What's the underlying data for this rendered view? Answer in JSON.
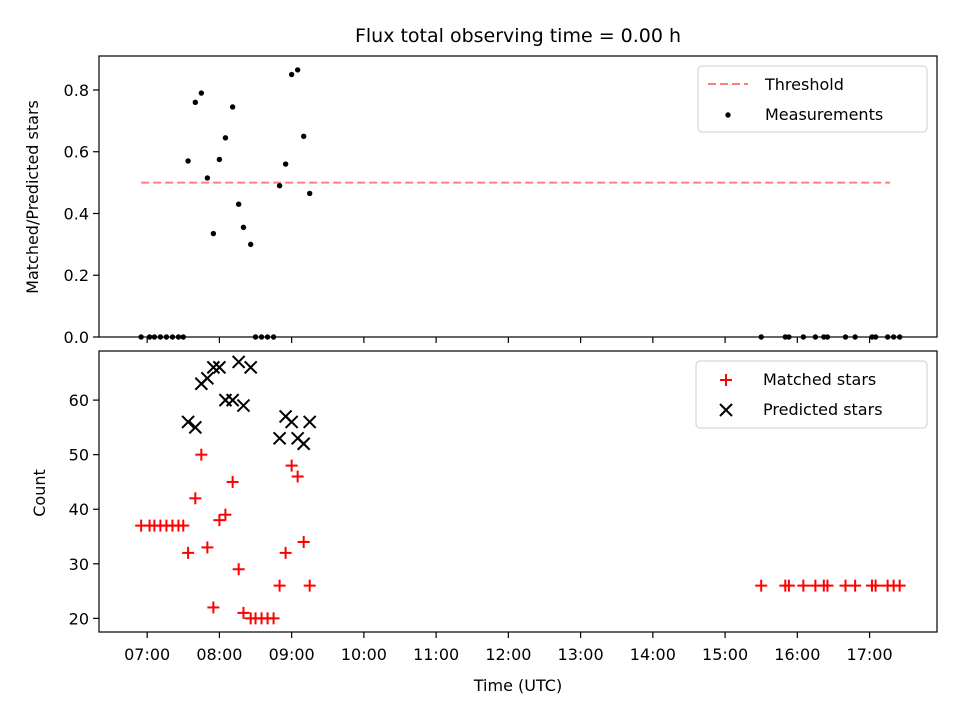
{
  "chart_data": [
    {
      "type": "scatter",
      "title": "Flux total observing time = 0.00 h",
      "xlabel": "",
      "ylabel": "Matched/Predicted stars",
      "ylim": [
        0,
        0.91
      ],
      "yticks": [
        "0.0",
        "0.2",
        "0.4",
        "0.6",
        "0.8"
      ],
      "legend_position": "top-right",
      "threshold": {
        "name": "Threshold",
        "value": 0.5,
        "x_start": "06:55",
        "x_end": "17:17",
        "color": "#ff7f7f"
      },
      "series": [
        {
          "name": "Measurements",
          "color": "#000000",
          "points": [
            [
              "06:55",
              0
            ],
            [
              "07:02",
              0
            ],
            [
              "07:06",
              0
            ],
            [
              "07:11",
              0
            ],
            [
              "07:16",
              0
            ],
            [
              "07:21",
              0
            ],
            [
              "07:26",
              0
            ],
            [
              "07:30",
              0
            ],
            [
              "07:34",
              0.57
            ],
            [
              "07:40",
              0.76
            ],
            [
              "07:45",
              0.79
            ],
            [
              "07:50",
              0.515
            ],
            [
              "07:55",
              0.335
            ],
            [
              "08:00",
              0.575
            ],
            [
              "08:05",
              0.645
            ],
            [
              "08:11",
              0.745
            ],
            [
              "08:16",
              0.43
            ],
            [
              "08:20",
              0.355
            ],
            [
              "08:26",
              0.3
            ],
            [
              "08:30",
              0
            ],
            [
              "08:35",
              0
            ],
            [
              "08:40",
              0
            ],
            [
              "08:45",
              0
            ],
            [
              "08:50",
              0.49
            ],
            [
              "08:55",
              0.56
            ],
            [
              "09:00",
              0.85
            ],
            [
              "09:05",
              0.865
            ],
            [
              "09:10",
              0.65
            ],
            [
              "09:15",
              0.465
            ],
            [
              "15:30",
              0
            ],
            [
              "15:50",
              0
            ],
            [
              "15:53",
              0
            ],
            [
              "16:05",
              0
            ],
            [
              "16:15",
              0
            ],
            [
              "16:22",
              0
            ],
            [
              "16:25",
              0
            ],
            [
              "16:40",
              0
            ],
            [
              "16:48",
              0
            ],
            [
              "17:02",
              0
            ],
            [
              "17:05",
              0
            ],
            [
              "17:15",
              0
            ],
            [
              "17:20",
              0
            ],
            [
              "17:25",
              0
            ]
          ]
        }
      ]
    },
    {
      "type": "scatter",
      "title": "",
      "xlabel": "Time (UTC)",
      "ylabel": "Count",
      "ylim": [
        17.5,
        69
      ],
      "yticks": [
        "20",
        "30",
        "40",
        "50",
        "60"
      ],
      "xticks": [
        "07:00",
        "08:00",
        "09:00",
        "10:00",
        "11:00",
        "12:00",
        "13:00",
        "14:00",
        "15:00",
        "16:00",
        "17:00"
      ],
      "legend_position": "top-right",
      "series": [
        {
          "name": "Matched stars",
          "marker": "+",
          "color": "#ff0000",
          "points": [
            [
              "06:55",
              37
            ],
            [
              "07:02",
              37
            ],
            [
              "07:06",
              37
            ],
            [
              "07:11",
              37
            ],
            [
              "07:16",
              37
            ],
            [
              "07:21",
              37
            ],
            [
              "07:26",
              37
            ],
            [
              "07:30",
              37
            ],
            [
              "07:34",
              32
            ],
            [
              "07:40",
              42
            ],
            [
              "07:45",
              50
            ],
            [
              "07:50",
              33
            ],
            [
              "07:55",
              22
            ],
            [
              "08:00",
              38
            ],
            [
              "08:05",
              39
            ],
            [
              "08:11",
              45
            ],
            [
              "08:16",
              29
            ],
            [
              "08:20",
              21
            ],
            [
              "08:26",
              20
            ],
            [
              "08:30",
              20
            ],
            [
              "08:35",
              20
            ],
            [
              "08:40",
              20
            ],
            [
              "08:45",
              20
            ],
            [
              "08:50",
              26
            ],
            [
              "08:55",
              32
            ],
            [
              "09:00",
              48
            ],
            [
              "09:05",
              46
            ],
            [
              "09:10",
              34
            ],
            [
              "09:15",
              26
            ],
            [
              "15:30",
              26
            ],
            [
              "15:50",
              26
            ],
            [
              "15:53",
              26
            ],
            [
              "16:05",
              26
            ],
            [
              "16:15",
              26
            ],
            [
              "16:22",
              26
            ],
            [
              "16:25",
              26
            ],
            [
              "16:40",
              26
            ],
            [
              "16:48",
              26
            ],
            [
              "17:02",
              26
            ],
            [
              "17:05",
              26
            ],
            [
              "17:15",
              26
            ],
            [
              "17:20",
              26
            ],
            [
              "17:25",
              26
            ]
          ]
        },
        {
          "name": "Predicted stars",
          "marker": "x",
          "color": "#000000",
          "points": [
            [
              "07:34",
              56
            ],
            [
              "07:40",
              55
            ],
            [
              "07:45",
              63
            ],
            [
              "07:50",
              64
            ],
            [
              "07:55",
              66
            ],
            [
              "08:00",
              66
            ],
            [
              "08:05",
              60
            ],
            [
              "08:11",
              60
            ],
            [
              "08:16",
              67
            ],
            [
              "08:20",
              59
            ],
            [
              "08:26",
              66
            ],
            [
              "08:50",
              53
            ],
            [
              "08:55",
              57
            ],
            [
              "09:00",
              56
            ],
            [
              "09:05",
              53
            ],
            [
              "09:10",
              52
            ],
            [
              "09:15",
              56
            ]
          ]
        }
      ]
    }
  ]
}
